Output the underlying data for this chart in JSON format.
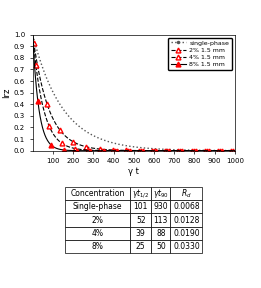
{
  "title": "",
  "xlabel": "γ t",
  "ylabel": "Irz",
  "xlim": [
    0,
    1000
  ],
  "ylim": [
    0,
    1.0
  ],
  "yticks": [
    0,
    0.1,
    0.2,
    0.3,
    0.4,
    0.5,
    0.6,
    0.7,
    0.8,
    0.9,
    1.0
  ],
  "xticks": [
    100,
    200,
    300,
    400,
    500,
    600,
    700,
    800,
    900,
    1000
  ],
  "single_phase": {
    "Rd": 0.0068,
    "label": "single-phase",
    "color": "#555555",
    "linestyle": "dotted"
  },
  "series": [
    {
      "label": "2% 1.5 mm",
      "Rd": 0.0128,
      "color": "red",
      "linestyle": "--",
      "marker": "^",
      "markerfacecolor": "white"
    },
    {
      "label": "4% 1.5 mm",
      "Rd": 0.019,
      "color": "red",
      "linestyle": "--",
      "marker": "^",
      "markerfacecolor": "white"
    },
    {
      "label": "8% 1.5 mm",
      "Rd": 0.033,
      "color": "red",
      "linestyle": "-",
      "marker": "^",
      "markerfacecolor": "red"
    }
  ],
  "table": {
    "columns": [
      "Concentration",
      "γt₁₂",
      "γt₉₀",
      "R_d"
    ],
    "rows": [
      [
        "Single-phase",
        "101",
        "930",
        "0.0068"
      ],
      [
        "2%",
        "52",
        "113",
        "0.0128"
      ],
      [
        "4%",
        "39",
        "88",
        "0.0190"
      ],
      [
        "8%",
        "25",
        "50",
        "0.0330"
      ]
    ]
  }
}
